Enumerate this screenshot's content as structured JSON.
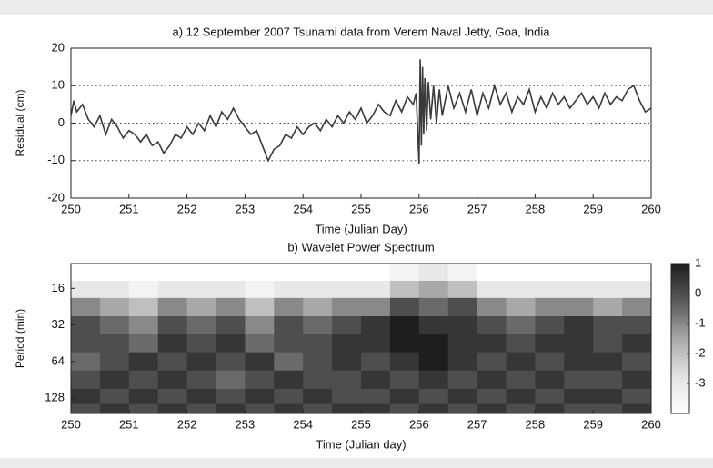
{
  "chart_data": [
    {
      "type": "line",
      "title": "a)  12 September 2007 Tsunami data from Verem Naval Jetty, Goa, India",
      "x_label": "Time (Julian Day)",
      "y_label": "Residual (cm)",
      "xlim": [
        250,
        260
      ],
      "xticks": [
        250,
        251,
        252,
        253,
        254,
        255,
        256,
        257,
        258,
        259,
        260
      ],
      "ylim": [
        -20,
        20
      ],
      "yticks": [
        20,
        10,
        0,
        -10,
        -20
      ],
      "grid": true,
      "series": [
        {
          "color": "#3a3a3a",
          "x": [
            250.0,
            250.05,
            250.1,
            250.2,
            250.3,
            250.4,
            250.5,
            250.6,
            250.7,
            250.8,
            250.9,
            251.0,
            251.1,
            251.2,
            251.3,
            251.4,
            251.5,
            251.6,
            251.7,
            251.8,
            251.9,
            252.0,
            252.1,
            252.2,
            252.3,
            252.4,
            252.5,
            252.6,
            252.7,
            252.8,
            252.9,
            253.0,
            253.1,
            253.2,
            253.3,
            253.4,
            253.5,
            253.6,
            253.7,
            253.8,
            253.9,
            254.0,
            254.1,
            254.2,
            254.3,
            254.4,
            254.5,
            254.6,
            254.7,
            254.8,
            254.9,
            255.0,
            255.1,
            255.2,
            255.3,
            255.4,
            255.5,
            255.6,
            255.7,
            255.8,
            255.9,
            255.95,
            256.0,
            256.02,
            256.04,
            256.06,
            256.08,
            256.1,
            256.13,
            256.16,
            256.2,
            256.25,
            256.3,
            256.35,
            256.4,
            256.5,
            256.6,
            256.7,
            256.8,
            256.9,
            257.0,
            257.1,
            257.2,
            257.3,
            257.4,
            257.5,
            257.6,
            257.7,
            257.8,
            257.9,
            258.0,
            258.1,
            258.2,
            258.3,
            258.4,
            258.5,
            258.6,
            258.7,
            258.8,
            258.9,
            259.0,
            259.1,
            259.2,
            259.3,
            259.4,
            259.5,
            259.6,
            259.7,
            259.8,
            259.9,
            260.0
          ],
          "values": [
            2,
            6,
            3,
            5,
            1,
            -1,
            2,
            -3,
            1,
            -1,
            -4,
            -2,
            -3,
            -5,
            -3,
            -6,
            -5,
            -8,
            -6,
            -3,
            -4,
            -1,
            -3,
            0,
            -2,
            2,
            -1,
            3,
            1,
            4,
            1,
            -1,
            -3,
            -2,
            -6,
            -10,
            -7,
            -6,
            -3,
            -4,
            -1,
            -3,
            -1,
            0,
            -2,
            1,
            -1,
            2,
            0,
            3,
            1,
            4,
            0,
            2,
            5,
            3,
            2,
            6,
            3,
            7,
            5,
            8,
            -11,
            17,
            -6,
            15,
            -3,
            12,
            -2,
            11,
            1,
            10,
            0,
            9,
            2,
            10,
            4,
            8,
            3,
            9,
            2,
            8,
            4,
            10,
            5,
            8,
            3,
            7,
            5,
            9,
            3,
            7,
            4,
            8,
            5,
            7,
            4,
            6,
            8,
            5,
            7,
            4,
            8,
            5,
            7,
            6,
            9,
            10,
            6,
            3,
            4
          ]
        }
      ]
    },
    {
      "type": "heatmap",
      "title": "b)  Wavelet Power Spectrum",
      "x_label": "Time (Julian day)",
      "y_label": "Period (min)",
      "xlim": [
        250,
        260
      ],
      "xticks": [
        250,
        251,
        252,
        253,
        254,
        255,
        256,
        257,
        258,
        259,
        260
      ],
      "ylim": [
        10,
        171
      ],
      "yticks": [
        16,
        32,
        64,
        128
      ],
      "y_log": true,
      "y_reversed": true,
      "x": [
        250.25,
        250.75,
        251.25,
        251.75,
        252.25,
        252.75,
        253.25,
        253.75,
        254.25,
        254.75,
        255.25,
        255.75,
        256.25,
        256.75,
        257.25,
        257.75,
        258.25,
        258.75,
        259.25,
        259.75
      ],
      "periods": [
        12,
        16,
        23,
        32,
        45,
        64,
        90,
        128,
        160
      ],
      "z": [
        [
          -4,
          -4,
          -4,
          -4,
          -4,
          -4,
          -4,
          -4,
          -4,
          -4,
          -4,
          -3.5,
          -3,
          -3.5,
          -4,
          -4,
          -4,
          -4,
          -4,
          -4
        ],
        [
          -3,
          -3,
          -3.5,
          -3,
          -3,
          -3,
          -3.5,
          -3,
          -3,
          -3,
          -3,
          -2,
          -1.5,
          -2,
          -3,
          -3,
          -3,
          -3,
          -3,
          -3
        ],
        [
          -1,
          -1.5,
          -2,
          -1,
          -1.5,
          -1,
          -2,
          -1,
          -1.5,
          -1,
          -1,
          0,
          -0.5,
          0,
          -1,
          -1.5,
          -1,
          -1,
          -1.5,
          -1
        ],
        [
          0,
          -0.5,
          -1,
          0,
          -0.5,
          0,
          -1,
          0,
          -0.5,
          0,
          0.5,
          1,
          0.5,
          0.5,
          0,
          -0.5,
          0,
          0.5,
          0,
          0
        ],
        [
          0,
          0,
          -0.5,
          0.5,
          0,
          0.5,
          -0.5,
          0,
          0,
          0.5,
          0.5,
          1,
          1,
          0.5,
          0.5,
          0,
          0.5,
          0.5,
          0,
          0.5
        ],
        [
          -0.5,
          0,
          0.5,
          0,
          0.5,
          0,
          0.5,
          -0.5,
          0,
          0.5,
          0,
          0.5,
          1,
          0.5,
          0,
          0.5,
          0,
          0.5,
          0.5,
          0
        ],
        [
          0,
          0.5,
          0,
          0.5,
          0,
          -0.5,
          0,
          0.5,
          0,
          0,
          0.5,
          0,
          0.5,
          0,
          0.5,
          0,
          0.5,
          0,
          0,
          0.5
        ],
        [
          0.5,
          0,
          0.5,
          0,
          0.5,
          0,
          0.5,
          0,
          0.5,
          0,
          0,
          0.5,
          0,
          0.5,
          0,
          0.5,
          0,
          0.5,
          0.5,
          0
        ],
        [
          0,
          0.5,
          0,
          0.5,
          0,
          0.5,
          0,
          0.5,
          0,
          0.5,
          0.5,
          0,
          0.5,
          0,
          0.5,
          0,
          0.5,
          0,
          0,
          0.5
        ]
      ],
      "clim": [
        -4,
        1
      ],
      "cticks": [
        1,
        0,
        -1,
        -2,
        -3
      ],
      "colormap": [
        "#ffffff",
        "#e2e2e2",
        "#a8a8a8",
        "#5a5a5a",
        "#1e1e1e"
      ]
    }
  ]
}
